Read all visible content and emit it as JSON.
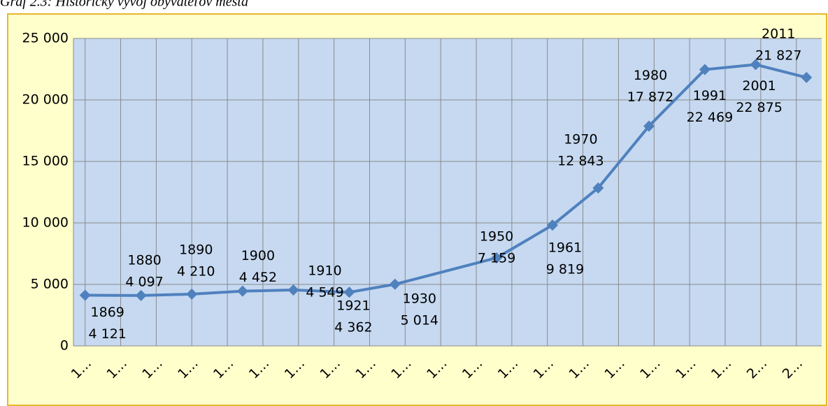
{
  "chart_data": {
    "type": "line",
    "title": "Graf 2.3: Historický vývoj obyvateľov mesta",
    "x": [
      1869,
      1880,
      1890,
      1900,
      1910,
      1921,
      1930,
      1950,
      1961,
      1970,
      1980,
      1991,
      2001,
      2011
    ],
    "series": [
      {
        "color": "#4f81bd",
        "values": [
          4121,
          4097,
          4210,
          4452,
          4549,
          4362,
          5014,
          7159,
          9819,
          12843,
          17872,
          22469,
          22875,
          21827
        ],
        "value_labels": [
          "4 121",
          "4 097",
          "4 210",
          "4 452",
          "4 549",
          "4 362",
          "5 014",
          "7 159",
          "9 819",
          "12 843",
          "17 872",
          "22 469",
          "22 875",
          "21 827"
        ]
      }
    ],
    "xlim": [
      1866.7,
      2014
    ],
    "xticks": [
      {
        "value": 1869,
        "label": "1…"
      },
      {
        "value": 1876,
        "label": "1…"
      },
      {
        "value": 1883,
        "label": "1…"
      },
      {
        "value": 1890,
        "label": "1…"
      },
      {
        "value": 1897,
        "label": "1…"
      },
      {
        "value": 1904,
        "label": "1…"
      },
      {
        "value": 1911,
        "label": "1…"
      },
      {
        "value": 1918,
        "label": "1…"
      },
      {
        "value": 1925,
        "label": "1…"
      },
      {
        "value": 1932,
        "label": "1…"
      },
      {
        "value": 1939,
        "label": "1…"
      },
      {
        "value": 1946,
        "label": "1…"
      },
      {
        "value": 1953,
        "label": "1…"
      },
      {
        "value": 1960,
        "label": "1…"
      },
      {
        "value": 1967,
        "label": "1…"
      },
      {
        "value": 1974,
        "label": "1…"
      },
      {
        "value": 1981,
        "label": "1…"
      },
      {
        "value": 1988,
        "label": "1…"
      },
      {
        "value": 1995,
        "label": "1…"
      },
      {
        "value": 2002,
        "label": "2…"
      },
      {
        "value": 2009,
        "label": "2…"
      }
    ],
    "ylim": [
      0,
      25000
    ],
    "yticks": [
      0,
      {
        "value": 5000,
        "label": "5 000"
      },
      {
        "value": 10000,
        "label": "10 000"
      },
      {
        "value": 15000,
        "label": "15 000"
      },
      {
        "value": 20000,
        "label": "20 000"
      },
      {
        "value": 25000,
        "label": "25 000"
      }
    ],
    "grid": true
  }
}
